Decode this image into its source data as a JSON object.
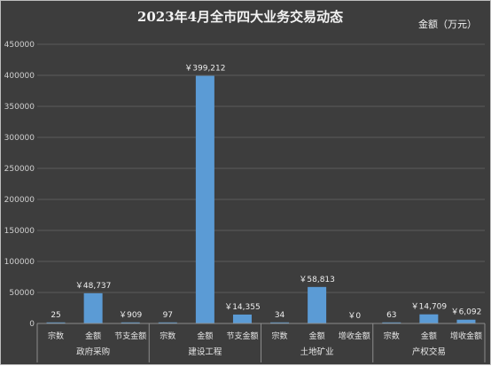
{
  "chart_data": {
    "type": "bar",
    "title": "2023年4月全市四大业务交易动态",
    "unit_label": "金额（万元）",
    "ylim": [
      0,
      450000
    ],
    "yticks": [
      "0",
      "50000",
      "100000",
      "150000",
      "200000",
      "250000",
      "300000",
      "350000",
      "400000",
      "450000"
    ],
    "grid": true,
    "groups": [
      {
        "name": "政府采购",
        "categories": [
          "宗数",
          "金额",
          "节支金额"
        ],
        "values": [
          25,
          48737,
          909
        ],
        "labels": [
          "25",
          "￥48,737",
          "￥909"
        ]
      },
      {
        "name": "建设工程",
        "categories": [
          "宗数",
          "金额",
          "节支金额"
        ],
        "values": [
          97,
          399212,
          14355
        ],
        "labels": [
          "97",
          "￥399,212",
          "￥14,355"
        ]
      },
      {
        "name": "土地矿业",
        "categories": [
          "宗数",
          "金额",
          "增收金额"
        ],
        "values": [
          34,
          58813,
          0
        ],
        "labels": [
          "34",
          "￥58,813",
          "￥0"
        ]
      },
      {
        "name": "产权交易",
        "categories": [
          "宗数",
          "金额",
          "增收金额"
        ],
        "values": [
          63,
          14709,
          6092
        ],
        "labels": [
          "63",
          "￥14,709",
          "￥6,092"
        ]
      }
    ],
    "colors": {
      "bar": "#5b9bd5",
      "background": "#3d3d3d"
    }
  }
}
